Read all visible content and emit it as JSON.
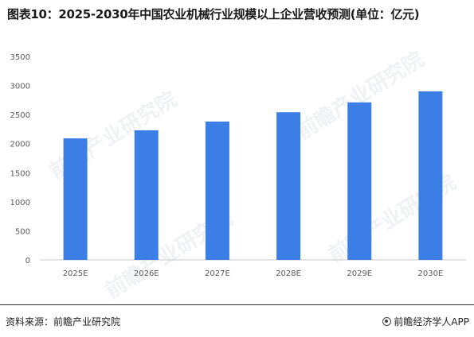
{
  "title": "图表10：2025-2030年中国农业机械行业规模以上企业营收预测(单位：亿元)",
  "watermark": "前瞻产业研究院",
  "footer": {
    "source": "资料来源：前瞻产业研究院",
    "brand": "前瞻经济学人APP",
    "brand_icon": "eye-logo-icon"
  },
  "colors": {
    "bar": "#3b7fe6",
    "axis": "#c8c8c8",
    "text": "#595959"
  },
  "chart_data": {
    "type": "bar",
    "title": "图表10：2025-2030年中国农业机械行业规模以上企业营收预测(单位：亿元)",
    "categories": [
      "2025E",
      "2026E",
      "2027E",
      "2028E",
      "2029E",
      "2030E"
    ],
    "values": [
      2090,
      2230,
      2380,
      2540,
      2710,
      2900
    ],
    "xlabel": "",
    "ylabel": "",
    "ylim": [
      0,
      3500
    ],
    "yticks": [
      0,
      500,
      1000,
      1500,
      2000,
      2500,
      3000,
      3500
    ],
    "grid": false,
    "legend": "none"
  }
}
